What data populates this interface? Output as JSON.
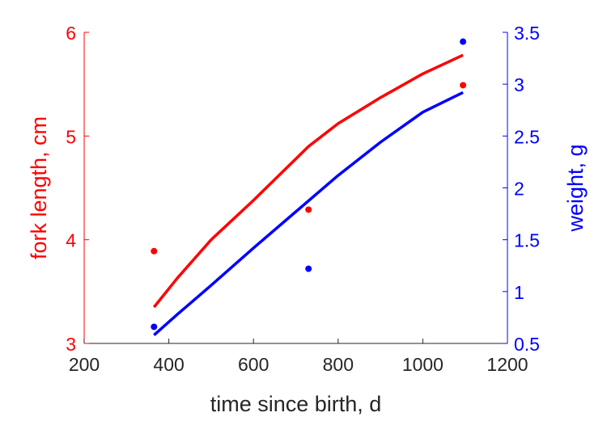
{
  "chart_data": {
    "type": "line",
    "title": "",
    "xlabel": "time since birth, d",
    "ylabel_left": "fork length, cm",
    "ylabel_right": "weight, g",
    "xlim": [
      200,
      1200
    ],
    "ylim_left": [
      3,
      6
    ],
    "ylim_right": [
      0.5,
      3.5
    ],
    "x_ticks": [
      "200",
      "400",
      "600",
      "800",
      "1000",
      "1200"
    ],
    "y_left_ticks": [
      "3",
      "4",
      "5",
      "6"
    ],
    "y_right_ticks": [
      "0.5",
      "1",
      "1.5",
      "2",
      "2.5",
      "3",
      "3.5"
    ],
    "grid": false,
    "colors": {
      "left": "#ff0000",
      "right": "#0000ff",
      "axis": "#262626"
    },
    "series": [
      {
        "axis": "left",
        "color": "#ff0000",
        "points": [
          {
            "x": 365,
            "y": 3.89
          },
          {
            "x": 730,
            "y": 4.29
          },
          {
            "x": 1095,
            "y": 5.49
          }
        ],
        "curve": [
          {
            "x": 365,
            "y": 3.35
          },
          {
            "x": 420,
            "y": 3.63
          },
          {
            "x": 500,
            "y": 4.0
          },
          {
            "x": 600,
            "y": 4.38
          },
          {
            "x": 700,
            "y": 4.78
          },
          {
            "x": 730,
            "y": 4.9
          },
          {
            "x": 800,
            "y": 5.12
          },
          {
            "x": 900,
            "y": 5.37
          },
          {
            "x": 1000,
            "y": 5.6
          },
          {
            "x": 1095,
            "y": 5.78
          }
        ]
      },
      {
        "axis": "right",
        "color": "#0000ff",
        "points": [
          {
            "x": 365,
            "y": 0.66
          },
          {
            "x": 730,
            "y": 1.22
          },
          {
            "x": 1095,
            "y": 3.41
          }
        ],
        "curve": [
          {
            "x": 365,
            "y": 0.58
          },
          {
            "x": 420,
            "y": 0.78
          },
          {
            "x": 500,
            "y": 1.06
          },
          {
            "x": 600,
            "y": 1.42
          },
          {
            "x": 700,
            "y": 1.77
          },
          {
            "x": 800,
            "y": 2.12
          },
          {
            "x": 900,
            "y": 2.44
          },
          {
            "x": 1000,
            "y": 2.73
          },
          {
            "x": 1095,
            "y": 2.92
          }
        ]
      }
    ]
  }
}
